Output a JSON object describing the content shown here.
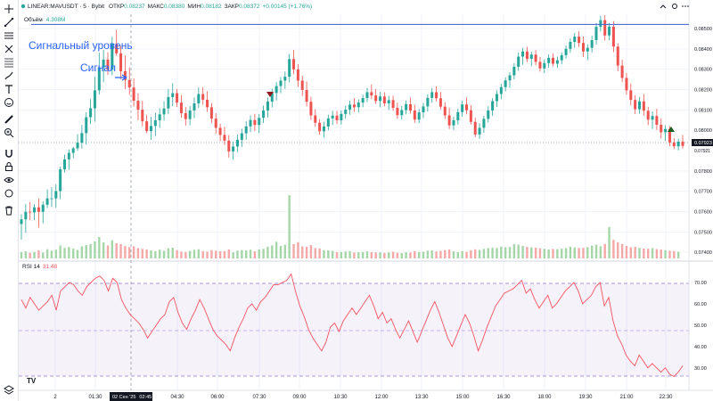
{
  "header": {
    "symbol": "LINEAR:MAVUSDT",
    "interval": "5",
    "exchange": "Bybit",
    "open_label": "ОТКР",
    "open_value": "0.08237",
    "high_label": "МАКС",
    "high_value": "0.08380",
    "low_label": "МИН",
    "low_value": "0.08182",
    "close_label": "ЗАКР",
    "close_value": "0.08372",
    "change": "+0.00145 (+1.76%)",
    "volume_label": "Объём",
    "volume_value": "4.308M"
  },
  "window_controls": {
    "icon1": "chevron-up-icon",
    "icon2": "settings-icon",
    "icon3": "more-icon"
  },
  "toolbar": {
    "icons": [
      "crosshair-icon",
      "trend-line-icon",
      "horizontal-lines-icon",
      "pitchfork-icon",
      "fib-icon",
      "brush-icon",
      "rectangle-icon",
      "text-icon",
      "emoji-icon",
      "ruler-icon",
      "zoom-icon",
      "magnet-icon",
      "lock-icon",
      "eye-icon",
      "trash-icon",
      "layers-icon"
    ]
  },
  "annotations": {
    "signal_level_label": "Сигнальный уровень",
    "signal_label": "Сигнал",
    "signal_level_price": 0.0852
  },
  "price_axis": {
    "ticks": [
      "0.08500",
      "0.08400",
      "0.08300",
      "0.08200",
      "0.08100",
      "0.08000",
      "0.07800",
      "0.07700",
      "0.07600",
      "0.07500",
      "0.07400"
    ],
    "last_price": "0.07923",
    "prev_close": "0.07921"
  },
  "rsi": {
    "label": "RSI 14",
    "value": "31.48",
    "ticks": [
      "70.00",
      "60.00",
      "50.00",
      "40.00",
      "30.00"
    ]
  },
  "time_axis": {
    "ticks": [
      "2",
      "01:30",
      "04:30",
      "06:00",
      "07:30",
      "09:00",
      "10:30",
      "12:00",
      "13:30",
      "15:00",
      "16:30",
      "18:00",
      "19:30",
      "21:00",
      "22:30"
    ],
    "cursor_label": "02 Сен '25",
    "cursor_time": "02:45"
  },
  "logo": "TV",
  "colors": {
    "up": "#26a69a",
    "down": "#ef5350",
    "level": "#4f6fd6",
    "annotation_text": "#2962ff",
    "rsi_line": "#f7525f",
    "rsi_band": "#7e57c2",
    "up_vol": "#a5d6a7",
    "down_vol": "#f4a9a8"
  },
  "chart_data": {
    "type": "candlestick",
    "y_range": [
      0.0737,
      0.0857
    ],
    "rsi_range": [
      22,
      75
    ],
    "candles": [
      [
        0.07539,
        0.07587,
        0.07462,
        0.07562
      ],
      [
        0.07562,
        0.07637,
        0.07496,
        0.07599
      ],
      [
        0.07599,
        0.07648,
        0.07559,
        0.07596
      ],
      [
        0.07596,
        0.07637,
        0.07559,
        0.07621
      ],
      [
        0.07621,
        0.07665,
        0.07521,
        0.07599
      ],
      [
        0.07599,
        0.07651,
        0.07542,
        0.07634
      ],
      [
        0.07634,
        0.07709,
        0.07618,
        0.07665
      ],
      [
        0.07665,
        0.0772,
        0.07623,
        0.07665
      ],
      [
        0.07665,
        0.07733,
        0.0762,
        0.07701
      ],
      [
        0.07701,
        0.07821,
        0.07661,
        0.07808
      ],
      [
        0.07808,
        0.0788,
        0.07792,
        0.07857
      ],
      [
        0.07857,
        0.07906,
        0.07805,
        0.07889
      ],
      [
        0.07889,
        0.07919,
        0.07862,
        0.07911
      ],
      [
        0.07911,
        0.07981,
        0.07899,
        0.07939
      ],
      [
        0.07939,
        0.08026,
        0.0791,
        0.07986
      ],
      [
        0.07986,
        0.08088,
        0.07929,
        0.08064
      ],
      [
        0.08064,
        0.08153,
        0.0803,
        0.08108
      ],
      [
        0.08108,
        0.08263,
        0.08042,
        0.08196
      ],
      [
        0.08196,
        0.08381,
        0.08176,
        0.08309
      ],
      [
        0.08309,
        0.08395,
        0.08236,
        0.08347
      ],
      [
        0.08347,
        0.08383,
        0.08272,
        0.08297
      ],
      [
        0.08297,
        0.08459,
        0.0827,
        0.08424
      ],
      [
        0.08424,
        0.08494,
        0.08366,
        0.08378
      ],
      [
        0.08378,
        0.08415,
        0.08251,
        0.0829
      ],
      [
        0.0829,
        0.08368,
        0.08201,
        0.08247
      ],
      [
        0.08247,
        0.08309,
        0.08174,
        0.0821
      ],
      [
        0.0821,
        0.08256,
        0.08116,
        0.08145
      ],
      [
        0.08145,
        0.08181,
        0.08049,
        0.08101
      ],
      [
        0.08101,
        0.08145,
        0.08019,
        0.08044
      ],
      [
        0.08044,
        0.08076,
        0.07986,
        0.07996
      ],
      [
        0.07996,
        0.08065,
        0.07953,
        0.08021
      ],
      [
        0.08021,
        0.08086,
        0.07972,
        0.08049
      ],
      [
        0.08049,
        0.08108,
        0.08012,
        0.08078
      ],
      [
        0.08078,
        0.08143,
        0.08047,
        0.08107
      ],
      [
        0.08107,
        0.08203,
        0.08079,
        0.08163
      ],
      [
        0.08163,
        0.08231,
        0.08118,
        0.08182
      ],
      [
        0.08182,
        0.08204,
        0.08114,
        0.08136
      ],
      [
        0.08136,
        0.08173,
        0.08061,
        0.08084
      ],
      [
        0.08084,
        0.08114,
        0.08023,
        0.08055
      ],
      [
        0.08055,
        0.08119,
        0.08025,
        0.08097
      ],
      [
        0.08097,
        0.08161,
        0.08059,
        0.08132
      ],
      [
        0.08132,
        0.0821,
        0.0811,
        0.08178
      ],
      [
        0.08178,
        0.08212,
        0.08126,
        0.0815
      ],
      [
        0.0815,
        0.08192,
        0.0809,
        0.08113
      ],
      [
        0.08113,
        0.08134,
        0.08035,
        0.08057
      ],
      [
        0.08057,
        0.08084,
        0.07983,
        0.08012
      ],
      [
        0.08012,
        0.08032,
        0.07946,
        0.07977
      ],
      [
        0.07977,
        0.08017,
        0.07928,
        0.07949
      ],
      [
        0.07949,
        0.07976,
        0.07866,
        0.07896
      ],
      [
        0.07896,
        0.07944,
        0.07856,
        0.0792
      ],
      [
        0.0792,
        0.07978,
        0.07893,
        0.07953
      ],
      [
        0.07953,
        0.08007,
        0.07918,
        0.07985
      ],
      [
        0.07985,
        0.08045,
        0.07953,
        0.08019
      ],
      [
        0.08019,
        0.08073,
        0.07991,
        0.0805
      ],
      [
        0.0805,
        0.08081,
        0.07996,
        0.08026
      ],
      [
        0.08026,
        0.0808,
        0.07986,
        0.08061
      ],
      [
        0.08061,
        0.08121,
        0.08035,
        0.08097
      ],
      [
        0.08097,
        0.08161,
        0.08063,
        0.08141
      ],
      [
        0.08141,
        0.08204,
        0.08112,
        0.08183
      ],
      [
        0.08183,
        0.08236,
        0.08146,
        0.08217
      ],
      [
        0.08217,
        0.08262,
        0.08182,
        0.08244
      ],
      [
        0.08244,
        0.08289,
        0.08203,
        0.08263
      ],
      [
        0.08263,
        0.08375,
        0.08235,
        0.0835
      ],
      [
        0.0835,
        0.08395,
        0.08275,
        0.08299
      ],
      [
        0.08299,
        0.08325,
        0.08213,
        0.08244
      ],
      [
        0.08244,
        0.08268,
        0.08168,
        0.08198
      ],
      [
        0.08198,
        0.0824,
        0.08117,
        0.0814
      ],
      [
        0.0814,
        0.08164,
        0.08051,
        0.08073
      ],
      [
        0.08073,
        0.08104,
        0.08018,
        0.08037
      ],
      [
        0.08037,
        0.08055,
        0.07978,
        0.07995
      ],
      [
        0.07995,
        0.08041,
        0.07964,
        0.08018
      ],
      [
        0.08018,
        0.08077,
        0.07999,
        0.08058
      ],
      [
        0.08058,
        0.08096,
        0.08025,
        0.08072
      ],
      [
        0.08072,
        0.08095,
        0.08031,
        0.08049
      ],
      [
        0.08049,
        0.08097,
        0.08028,
        0.0808
      ],
      [
        0.0808,
        0.08121,
        0.08057,
        0.08101
      ],
      [
        0.08101,
        0.08146,
        0.08076,
        0.08126
      ],
      [
        0.08126,
        0.08158,
        0.0809,
        0.08113
      ],
      [
        0.08113,
        0.08152,
        0.08088,
        0.08136
      ],
      [
        0.08136,
        0.08175,
        0.08113,
        0.08158
      ],
      [
        0.08158,
        0.08208,
        0.08139,
        0.08187
      ],
      [
        0.08187,
        0.08225,
        0.08153,
        0.08171
      ],
      [
        0.08171,
        0.08203,
        0.08129,
        0.08144
      ],
      [
        0.08144,
        0.08188,
        0.08113,
        0.08166
      ],
      [
        0.08166,
        0.08187,
        0.08117,
        0.08132
      ],
      [
        0.08132,
        0.08169,
        0.08099,
        0.08148
      ],
      [
        0.08148,
        0.0817,
        0.08095,
        0.0811
      ],
      [
        0.0811,
        0.08136,
        0.08056,
        0.08074
      ],
      [
        0.08074,
        0.08119,
        0.08053,
        0.08099
      ],
      [
        0.08099,
        0.08146,
        0.08078,
        0.08128
      ],
      [
        0.08128,
        0.0816,
        0.08081,
        0.08097
      ],
      [
        0.08097,
        0.08126,
        0.08036,
        0.08052
      ],
      [
        0.08052,
        0.08104,
        0.08034,
        0.08088
      ],
      [
        0.08088,
        0.08135,
        0.0806,
        0.08117
      ],
      [
        0.08117,
        0.08177,
        0.08092,
        0.08159
      ],
      [
        0.08159,
        0.08207,
        0.08135,
        0.08187
      ],
      [
        0.08187,
        0.08215,
        0.08142,
        0.08157
      ],
      [
        0.08157,
        0.08188,
        0.08103,
        0.08116
      ],
      [
        0.08116,
        0.08138,
        0.08055,
        0.08073
      ],
      [
        0.08073,
        0.0811,
        0.08006,
        0.08024
      ],
      [
        0.08024,
        0.08066,
        0.08002,
        0.08049
      ],
      [
        0.08049,
        0.08106,
        0.08028,
        0.08089
      ],
      [
        0.08089,
        0.08144,
        0.08067,
        0.08127
      ],
      [
        0.08127,
        0.08161,
        0.08078,
        0.08098
      ],
      [
        0.08098,
        0.08124,
        0.08028,
        0.08041
      ],
      [
        0.08041,
        0.08062,
        0.07966,
        0.07979
      ],
      [
        0.07979,
        0.08035,
        0.07958,
        0.08012
      ],
      [
        0.08012,
        0.08071,
        0.07987,
        0.08056
      ],
      [
        0.08056,
        0.08118,
        0.08038,
        0.08097
      ],
      [
        0.08097,
        0.08158,
        0.08071,
        0.08143
      ],
      [
        0.08143,
        0.08196,
        0.08115,
        0.08178
      ],
      [
        0.08178,
        0.08228,
        0.08152,
        0.08212
      ],
      [
        0.08212,
        0.0826,
        0.08191,
        0.08245
      ],
      [
        0.08245,
        0.08286,
        0.08208,
        0.0827
      ],
      [
        0.0827,
        0.0833,
        0.0825,
        0.08312
      ],
      [
        0.08312,
        0.08382,
        0.08292,
        0.08362
      ],
      [
        0.08362,
        0.08404,
        0.08322,
        0.08387
      ],
      [
        0.08387,
        0.0841,
        0.08335,
        0.08351
      ],
      [
        0.08351,
        0.08386,
        0.08314,
        0.08372
      ],
      [
        0.08372,
        0.08394,
        0.08319,
        0.08336
      ],
      [
        0.08336,
        0.0836,
        0.08288,
        0.08304
      ],
      [
        0.08304,
        0.08348,
        0.08281,
        0.0833
      ],
      [
        0.0833,
        0.08373,
        0.08307,
        0.08356
      ],
      [
        0.08356,
        0.08378,
        0.08314,
        0.08327
      ],
      [
        0.08327,
        0.08362,
        0.08306,
        0.08344
      ],
      [
        0.08344,
        0.08383,
        0.08324,
        0.08369
      ],
      [
        0.08369,
        0.08418,
        0.08352,
        0.084
      ],
      [
        0.084,
        0.08452,
        0.08381,
        0.08434
      ],
      [
        0.08434,
        0.08478,
        0.08405,
        0.0846
      ],
      [
        0.0846,
        0.08486,
        0.08409,
        0.08429
      ],
      [
        0.08429,
        0.0846,
        0.08359,
        0.08387
      ],
      [
        0.08387,
        0.08423,
        0.08345,
        0.08405
      ],
      [
        0.08405,
        0.08464,
        0.08382,
        0.08443
      ],
      [
        0.08443,
        0.08528,
        0.08421,
        0.08508
      ],
      [
        0.08508,
        0.08562,
        0.08485,
        0.08541
      ],
      [
        0.08541,
        0.08566,
        0.08441,
        0.08466
      ],
      [
        0.08466,
        0.08527,
        0.08443,
        0.08509
      ],
      [
        0.08509,
        0.08536,
        0.08384,
        0.08411
      ],
      [
        0.08411,
        0.08428,
        0.0829,
        0.08318
      ],
      [
        0.08318,
        0.08347,
        0.08236,
        0.08257
      ],
      [
        0.08257,
        0.08282,
        0.08174,
        0.08196
      ],
      [
        0.08196,
        0.08229,
        0.08121,
        0.08149
      ],
      [
        0.08149,
        0.08172,
        0.08079,
        0.08103
      ],
      [
        0.08103,
        0.08164,
        0.08081,
        0.08142
      ],
      [
        0.08142,
        0.08177,
        0.08072,
        0.08096
      ],
      [
        0.08096,
        0.08115,
        0.08025,
        0.08052
      ],
      [
        0.08052,
        0.08092,
        0.08006,
        0.0807
      ],
      [
        0.0807,
        0.08106,
        0.08001,
        0.08027
      ],
      [
        0.08027,
        0.08058,
        0.0796,
        0.0799
      ],
      [
        0.0799,
        0.08024,
        0.07947,
        0.08006
      ],
      [
        0.08006,
        0.08021,
        0.07922,
        0.0794
      ],
      [
        0.0794,
        0.07961,
        0.07907,
        0.07921
      ],
      [
        0.07921,
        0.07959,
        0.07901,
        0.07944
      ],
      [
        0.07944,
        0.07977,
        0.0791,
        0.07923
      ]
    ],
    "volumes": [
      0.31,
      0.35,
      0.28,
      0.32,
      0.4,
      0.29,
      0.45,
      0.38,
      0.43,
      0.64,
      0.52,
      0.56,
      0.48,
      0.42,
      0.6,
      0.66,
      0.71,
      0.84,
      1.06,
      0.79,
      0.64,
      0.9,
      0.75,
      0.71,
      0.61,
      0.56,
      0.6,
      0.51,
      0.47,
      0.44,
      0.39,
      0.36,
      0.43,
      0.38,
      0.5,
      0.53,
      0.41,
      0.34,
      0.32,
      0.37,
      0.43,
      0.45,
      0.36,
      0.33,
      0.41,
      0.38,
      0.35,
      0.36,
      0.44,
      0.3,
      0.38,
      0.41,
      0.39,
      0.43,
      0.35,
      0.44,
      0.47,
      0.58,
      0.64,
      0.82,
      0.62,
      0.67,
      3.12,
      0.71,
      0.8,
      0.59,
      0.58,
      0.66,
      0.51,
      0.49,
      0.41,
      0.4,
      0.37,
      0.31,
      0.32,
      0.34,
      0.36,
      0.29,
      0.3,
      0.32,
      0.35,
      0.31,
      0.29,
      0.3,
      0.27,
      0.29,
      0.33,
      0.28,
      0.26,
      0.3,
      0.29,
      0.36,
      0.31,
      0.33,
      0.38,
      0.39,
      0.34,
      0.37,
      0.41,
      0.44,
      0.35,
      0.31,
      0.36,
      0.32,
      0.4,
      0.45,
      0.42,
      0.47,
      0.51,
      0.53,
      0.51,
      0.58,
      0.55,
      0.56,
      0.71,
      0.68,
      0.62,
      0.57,
      0.55,
      0.53,
      0.5,
      0.47,
      0.44,
      0.47,
      0.46,
      0.48,
      0.51,
      0.58,
      0.54,
      0.51,
      0.52,
      0.56,
      0.63,
      0.68,
      0.6,
      0.71,
      1.55,
      0.92,
      0.8,
      0.71,
      0.62,
      0.55,
      0.57,
      0.52,
      0.49,
      0.48,
      0.51,
      0.46,
      0.44,
      0.41,
      0.38,
      0.36,
      0.33
    ],
    "rsi": [
      62,
      58,
      63,
      60,
      57,
      59,
      61,
      64,
      57,
      66,
      68,
      70,
      69,
      66,
      64,
      68,
      70,
      72,
      73,
      71,
      66,
      72,
      70,
      62,
      58,
      55,
      53,
      51,
      48,
      44,
      47,
      50,
      53,
      55,
      61,
      63,
      56,
      51,
      48,
      53,
      57,
      62,
      58,
      53,
      48,
      45,
      43,
      41,
      38,
      44,
      49,
      53,
      58,
      60,
      57,
      61,
      63,
      66,
      69,
      69,
      70,
      71,
      74,
      66,
      59,
      54,
      48,
      44,
      41,
      38,
      42,
      49,
      51,
      47,
      52,
      55,
      58,
      55,
      58,
      61,
      64,
      59,
      53,
      56,
      51,
      53,
      48,
      44,
      48,
      52,
      47,
      42,
      47,
      52,
      57,
      61,
      56,
      50,
      44,
      40,
      45,
      50,
      55,
      51,
      45,
      38,
      43,
      49,
      54,
      59,
      62,
      65,
      66,
      67,
      69,
      71,
      65,
      67,
      62,
      58,
      61,
      64,
      58,
      60,
      63,
      66,
      68,
      70,
      66,
      60,
      62,
      64,
      68,
      70,
      59,
      63,
      52,
      45,
      41,
      36,
      33,
      31,
      36,
      33,
      30,
      32,
      30,
      28,
      30,
      27,
      26,
      28,
      31
    ]
  }
}
